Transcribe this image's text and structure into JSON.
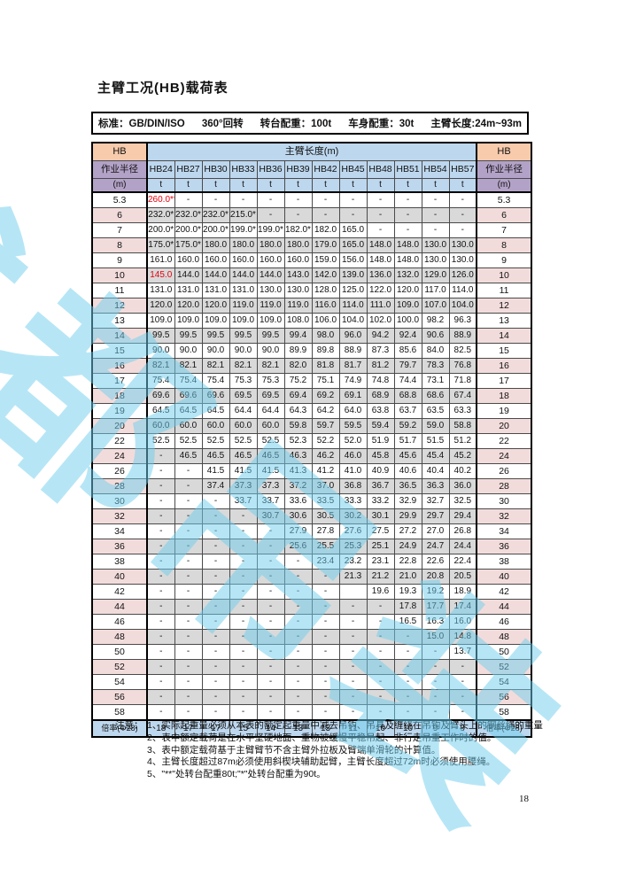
{
  "title": "主臂工况(HB)载荷表",
  "info_bar": {
    "standard": "标准：GB/DIN/ISO",
    "slewing": "360°回转",
    "turntable_counterweight": "转台配重：100t",
    "carbody_counterweight": "车身配重：30t",
    "boom_length": "主臂长度:24m~93m"
  },
  "table": {
    "corner_top": "HB",
    "corner_mid": "作业半径",
    "corner_bottom": "(m)",
    "span_header": "主臂长度(m)",
    "columns": [
      "HB24",
      "HB27",
      "HB30",
      "HB33",
      "HB36",
      "HB39",
      "HB42",
      "HB45",
      "HB48",
      "HB51",
      "HB54",
      "HB57"
    ],
    "unit": "t",
    "rows": [
      {
        "radius": "5.3",
        "values": [
          "260.0**",
          "-",
          "-",
          "-",
          "-",
          "-",
          "-",
          "-",
          "-",
          "-",
          "-",
          "-"
        ]
      },
      {
        "radius": "6",
        "values": [
          "232.0*",
          "232.0*",
          "232.0*",
          "215.0*",
          "-",
          "-",
          "-",
          "-",
          "-",
          "-",
          "-",
          "-"
        ]
      },
      {
        "radius": "7",
        "values": [
          "200.0*",
          "200.0*",
          "200.0*",
          "199.0*",
          "199.0*",
          "182.0*",
          "182.0",
          "165.0",
          "-",
          "-",
          "-",
          "-"
        ]
      },
      {
        "radius": "8",
        "values": [
          "175.0*",
          "175.0*",
          "180.0",
          "180.0",
          "180.0",
          "180.0",
          "179.0",
          "165.0",
          "148.0",
          "148.0",
          "130.0",
          "130.0"
        ]
      },
      {
        "radius": "9",
        "values": [
          "161.0",
          "160.0",
          "160.0",
          "160.0",
          "160.0",
          "160.0",
          "159.0",
          "156.0",
          "148.0",
          "148.0",
          "130.0",
          "130.0"
        ]
      },
      {
        "radius": "10",
        "values": [
          "145.0",
          "144.0",
          "144.0",
          "144.0",
          "144.0",
          "143.0",
          "142.0",
          "139.0",
          "136.0",
          "132.0",
          "129.0",
          "126.0"
        ]
      },
      {
        "radius": "11",
        "values": [
          "131.0",
          "131.0",
          "131.0",
          "131.0",
          "130.0",
          "130.0",
          "128.0",
          "125.0",
          "122.0",
          "120.0",
          "117.0",
          "114.0"
        ]
      },
      {
        "radius": "12",
        "values": [
          "120.0",
          "120.0",
          "120.0",
          "119.0",
          "119.0",
          "119.0",
          "116.0",
          "114.0",
          "111.0",
          "109.0",
          "107.0",
          "104.0"
        ]
      },
      {
        "radius": "13",
        "values": [
          "109.0",
          "109.0",
          "109.0",
          "109.0",
          "109.0",
          "108.0",
          "106.0",
          "104.0",
          "102.0",
          "100.0",
          "98.2",
          "96.3"
        ]
      },
      {
        "radius": "14",
        "values": [
          "99.5",
          "99.5",
          "99.5",
          "99.5",
          "99.5",
          "99.4",
          "98.0",
          "96.0",
          "94.2",
          "92.4",
          "90.6",
          "88.9"
        ]
      },
      {
        "radius": "15",
        "values": [
          "90.0",
          "90.0",
          "90.0",
          "90.0",
          "90.0",
          "89.9",
          "89.8",
          "88.9",
          "87.3",
          "85.6",
          "84.0",
          "82.5"
        ]
      },
      {
        "radius": "16",
        "values": [
          "82.1",
          "82.1",
          "82.1",
          "82.1",
          "82.1",
          "82.0",
          "81.8",
          "81.7",
          "81.2",
          "79.7",
          "78.3",
          "76.8"
        ]
      },
      {
        "radius": "17",
        "values": [
          "75.4",
          "75.4",
          "75.4",
          "75.3",
          "75.3",
          "75.2",
          "75.1",
          "74.9",
          "74.8",
          "74.4",
          "73.1",
          "71.8"
        ]
      },
      {
        "radius": "18",
        "values": [
          "69.6",
          "69.6",
          "69.6",
          "69.5",
          "69.5",
          "69.4",
          "69.2",
          "69.1",
          "68.9",
          "68.8",
          "68.6",
          "67.4"
        ]
      },
      {
        "radius": "19",
        "values": [
          "64.5",
          "64.5",
          "64.5",
          "64.4",
          "64.4",
          "64.3",
          "64.2",
          "64.0",
          "63.8",
          "63.7",
          "63.5",
          "63.3"
        ]
      },
      {
        "radius": "20",
        "values": [
          "60.0",
          "60.0",
          "60.0",
          "60.0",
          "60.0",
          "59.8",
          "59.7",
          "59.5",
          "59.4",
          "59.2",
          "59.0",
          "58.8"
        ]
      },
      {
        "radius": "22",
        "values": [
          "52.5",
          "52.5",
          "52.5",
          "52.5",
          "52.5",
          "52.3",
          "52.2",
          "52.0",
          "51.9",
          "51.7",
          "51.5",
          "51.2"
        ]
      },
      {
        "radius": "24",
        "values": [
          "-",
          "46.5",
          "46.5",
          "46.5",
          "46.5",
          "46.3",
          "46.2",
          "46.0",
          "45.8",
          "45.6",
          "45.4",
          "45.2"
        ]
      },
      {
        "radius": "26",
        "values": [
          "-",
          "-",
          "41.5",
          "41.5",
          "41.5",
          "41.3",
          "41.2",
          "41.0",
          "40.9",
          "40.6",
          "40.4",
          "40.2"
        ]
      },
      {
        "radius": "28",
        "values": [
          "-",
          "-",
          "37.4",
          "37.3",
          "37.3",
          "37.2",
          "37.0",
          "36.8",
          "36.7",
          "36.5",
          "36.3",
          "36.0"
        ]
      },
      {
        "radius": "30",
        "values": [
          "-",
          "-",
          "-",
          "33.7",
          "33.7",
          "33.6",
          "33.5",
          "33.3",
          "33.2",
          "32.9",
          "32.7",
          "32.5"
        ]
      },
      {
        "radius": "32",
        "values": [
          "-",
          "-",
          "-",
          "-",
          "30.7",
          "30.6",
          "30.5",
          "30.2",
          "30.1",
          "29.9",
          "29.7",
          "29.4"
        ]
      },
      {
        "radius": "34",
        "values": [
          "-",
          "-",
          "-",
          "-",
          "-",
          "27.9",
          "27.8",
          "27.6",
          "27.5",
          "27.2",
          "27.0",
          "26.8"
        ]
      },
      {
        "radius": "36",
        "values": [
          "-",
          "-",
          "-",
          "-",
          "-",
          "25.6",
          "25.5",
          "25.3",
          "25.1",
          "24.9",
          "24.7",
          "24.4"
        ]
      },
      {
        "radius": "38",
        "values": [
          "-",
          "-",
          "-",
          "-",
          "-",
          "-",
          "23.4",
          "23.2",
          "23.1",
          "22.8",
          "22.6",
          "22.4"
        ]
      },
      {
        "radius": "40",
        "values": [
          "-",
          "-",
          "-",
          "-",
          "-",
          "-",
          "-",
          "21.3",
          "21.2",
          "21.0",
          "20.8",
          "20.5"
        ]
      },
      {
        "radius": "42",
        "values": [
          "-",
          "-",
          "-",
          "-",
          "-",
          "-",
          "-",
          "",
          "19.6",
          "19.3",
          "19.2",
          "18.9"
        ]
      },
      {
        "radius": "44",
        "values": [
          "-",
          "-",
          "-",
          "-",
          "-",
          "-",
          "-",
          "-",
          "-",
          "17.8",
          "17.7",
          "17.4"
        ]
      },
      {
        "radius": "46",
        "values": [
          "-",
          "-",
          "-",
          "-",
          "-",
          "-",
          "-",
          "-",
          "-",
          "16.5",
          "16.3",
          "16.0"
        ]
      },
      {
        "radius": "48",
        "values": [
          "-",
          "-",
          "-",
          "-",
          "-",
          "-",
          "-",
          "-",
          "-",
          "-",
          "15.0",
          "14.8"
        ]
      },
      {
        "radius": "50",
        "values": [
          "-",
          "-",
          "-",
          "-",
          "-",
          "-",
          "-",
          "-",
          "-",
          "-",
          "-",
          "13.7"
        ]
      },
      {
        "radius": "52",
        "values": [
          "-",
          "-",
          "-",
          "-",
          "-",
          "-",
          "-",
          "-",
          "-",
          "-",
          "-",
          "-"
        ]
      },
      {
        "radius": "54",
        "values": [
          "-",
          "-",
          "-",
          "-",
          "-",
          "-",
          "-",
          "-",
          "-",
          "-",
          "-",
          "-"
        ]
      },
      {
        "radius": "56",
        "values": [
          "-",
          "-",
          "-",
          "-",
          "-",
          "-",
          "-",
          "-",
          "-",
          "-",
          "-",
          "-"
        ]
      },
      {
        "radius": "58",
        "values": [
          "-",
          "-",
          "-",
          "-",
          "-",
          "-",
          "-",
          "-",
          "-",
          "-",
          "-",
          "-"
        ]
      }
    ],
    "red_cells": [
      [
        0,
        0
      ],
      [
        5,
        0
      ]
    ],
    "multiplier_label": "倍率(Φ28)",
    "multiplier_values": [
      "18",
      "17",
      "17",
      "15",
      "14",
      "13",
      "13",
      "11",
      "10",
      "10",
      "9",
      "9"
    ]
  },
  "notes": {
    "label": "注意：",
    "items": [
      "1、实际起重量必须从本表的额定起重量中减去吊钩、吊具及缠绕在吊钩及臂头上的钢丝绳的重量",
      "2、表中额定载荷是在水平坚硬地面、重物被缓慢平稳吊起、非行走吊重工作时的值。",
      "3、表中额定载荷基于主臂臂节不含主臂外拉板及臂端单滑轮的计算值。",
      "4、主臂长度超过87m必须使用斜楔块辅助起臂，主臂长度超过72m时必须使用腰绳。",
      "5、\"**\"处转台配重80t;\"*\"处转台配重为90t。"
    ]
  },
  "page": {
    "number": "18"
  },
  "watermark": {
    "text": "成都吊装",
    "color": "rgba(110,205,238,0.5)"
  },
  "colors": {
    "header_orange": "#F8CBAD",
    "header_purple": "#B3A2C7",
    "header_blue": "#BDD7EE",
    "stripe_pink": "#F2DCDB",
    "stripe_gray": "#D9D9D9",
    "highlight_red": "#E8000D",
    "watermark_blue": "#6FCEEE"
  }
}
